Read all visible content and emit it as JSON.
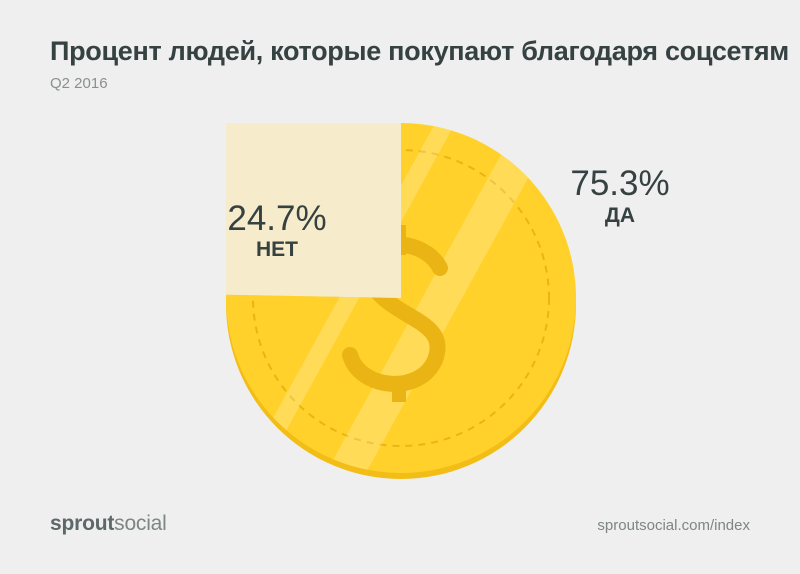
{
  "title": "Процент людей, которые покупают благодаря соцсетям",
  "subtitle": "Q2 2016",
  "brand": {
    "part1": "sprout",
    "part2": "social"
  },
  "source": "sproutsocial.com/index",
  "colors": {
    "yes": "#ffd12a",
    "no": "#f6eccb",
    "rim": "#f2bd16",
    "text": "#364141"
  },
  "chart_data": {
    "type": "pie",
    "title": "Процент людей, которые покупают благодаря соцсетям",
    "subtitle": "Q2 2016",
    "slices": [
      {
        "label": "ДА",
        "value": 75.3,
        "display": "75.3%"
      },
      {
        "label": "НЕТ",
        "value": 24.7,
        "display": "24.7%"
      }
    ]
  }
}
